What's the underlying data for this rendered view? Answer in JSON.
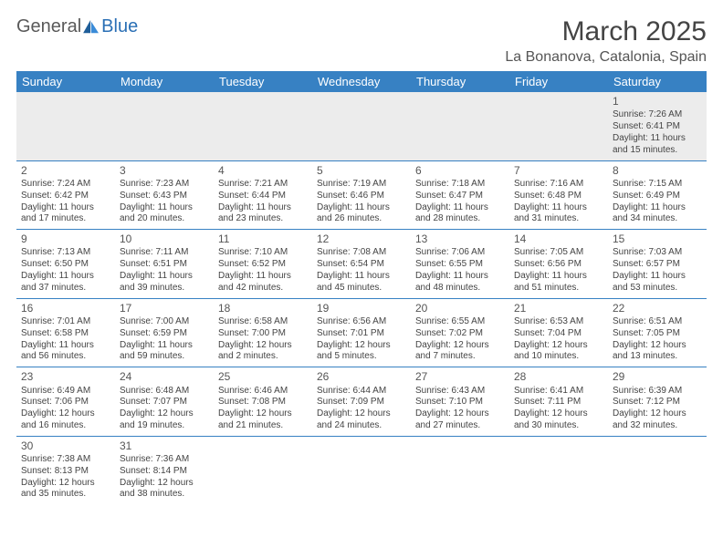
{
  "logo": {
    "text1": "General",
    "text2": "Blue"
  },
  "title": "March 2025",
  "location": "La Bonanova, Catalonia, Spain",
  "weekdays": [
    "Sunday",
    "Monday",
    "Tuesday",
    "Wednesday",
    "Thursday",
    "Friday",
    "Saturday"
  ],
  "colors": {
    "headerbg": "#3781c3",
    "rowline": "#3781c3",
    "shadebg": "#ececec"
  },
  "days": [
    {
      "n": 1,
      "sunrise": "7:26 AM",
      "sunset": "6:41 PM",
      "day": "11 hours and 15 minutes."
    },
    {
      "n": 2,
      "sunrise": "7:24 AM",
      "sunset": "6:42 PM",
      "day": "11 hours and 17 minutes."
    },
    {
      "n": 3,
      "sunrise": "7:23 AM",
      "sunset": "6:43 PM",
      "day": "11 hours and 20 minutes."
    },
    {
      "n": 4,
      "sunrise": "7:21 AM",
      "sunset": "6:44 PM",
      "day": "11 hours and 23 minutes."
    },
    {
      "n": 5,
      "sunrise": "7:19 AM",
      "sunset": "6:46 PM",
      "day": "11 hours and 26 minutes."
    },
    {
      "n": 6,
      "sunrise": "7:18 AM",
      "sunset": "6:47 PM",
      "day": "11 hours and 28 minutes."
    },
    {
      "n": 7,
      "sunrise": "7:16 AM",
      "sunset": "6:48 PM",
      "day": "11 hours and 31 minutes."
    },
    {
      "n": 8,
      "sunrise": "7:15 AM",
      "sunset": "6:49 PM",
      "day": "11 hours and 34 minutes."
    },
    {
      "n": 9,
      "sunrise": "7:13 AM",
      "sunset": "6:50 PM",
      "day": "11 hours and 37 minutes."
    },
    {
      "n": 10,
      "sunrise": "7:11 AM",
      "sunset": "6:51 PM",
      "day": "11 hours and 39 minutes."
    },
    {
      "n": 11,
      "sunrise": "7:10 AM",
      "sunset": "6:52 PM",
      "day": "11 hours and 42 minutes."
    },
    {
      "n": 12,
      "sunrise": "7:08 AM",
      "sunset": "6:54 PM",
      "day": "11 hours and 45 minutes."
    },
    {
      "n": 13,
      "sunrise": "7:06 AM",
      "sunset": "6:55 PM",
      "day": "11 hours and 48 minutes."
    },
    {
      "n": 14,
      "sunrise": "7:05 AM",
      "sunset": "6:56 PM",
      "day": "11 hours and 51 minutes."
    },
    {
      "n": 15,
      "sunrise": "7:03 AM",
      "sunset": "6:57 PM",
      "day": "11 hours and 53 minutes."
    },
    {
      "n": 16,
      "sunrise": "7:01 AM",
      "sunset": "6:58 PM",
      "day": "11 hours and 56 minutes."
    },
    {
      "n": 17,
      "sunrise": "7:00 AM",
      "sunset": "6:59 PM",
      "day": "11 hours and 59 minutes."
    },
    {
      "n": 18,
      "sunrise": "6:58 AM",
      "sunset": "7:00 PM",
      "day": "12 hours and 2 minutes."
    },
    {
      "n": 19,
      "sunrise": "6:56 AM",
      "sunset": "7:01 PM",
      "day": "12 hours and 5 minutes."
    },
    {
      "n": 20,
      "sunrise": "6:55 AM",
      "sunset": "7:02 PM",
      "day": "12 hours and 7 minutes."
    },
    {
      "n": 21,
      "sunrise": "6:53 AM",
      "sunset": "7:04 PM",
      "day": "12 hours and 10 minutes."
    },
    {
      "n": 22,
      "sunrise": "6:51 AM",
      "sunset": "7:05 PM",
      "day": "12 hours and 13 minutes."
    },
    {
      "n": 23,
      "sunrise": "6:49 AM",
      "sunset": "7:06 PM",
      "day": "12 hours and 16 minutes."
    },
    {
      "n": 24,
      "sunrise": "6:48 AM",
      "sunset": "7:07 PM",
      "day": "12 hours and 19 minutes."
    },
    {
      "n": 25,
      "sunrise": "6:46 AM",
      "sunset": "7:08 PM",
      "day": "12 hours and 21 minutes."
    },
    {
      "n": 26,
      "sunrise": "6:44 AM",
      "sunset": "7:09 PM",
      "day": "12 hours and 24 minutes."
    },
    {
      "n": 27,
      "sunrise": "6:43 AM",
      "sunset": "7:10 PM",
      "day": "12 hours and 27 minutes."
    },
    {
      "n": 28,
      "sunrise": "6:41 AM",
      "sunset": "7:11 PM",
      "day": "12 hours and 30 minutes."
    },
    {
      "n": 29,
      "sunrise": "6:39 AM",
      "sunset": "7:12 PM",
      "day": "12 hours and 32 minutes."
    },
    {
      "n": 30,
      "sunrise": "7:38 AM",
      "sunset": "8:13 PM",
      "day": "12 hours and 35 minutes."
    },
    {
      "n": 31,
      "sunrise": "7:36 AM",
      "sunset": "8:14 PM",
      "day": "12 hours and 38 minutes."
    }
  ],
  "labels": {
    "sunrise": "Sunrise:",
    "sunset": "Sunset:",
    "daylight": "Daylight:"
  },
  "grid": {
    "firstDayOffset": 6,
    "totalDays": 31
  }
}
